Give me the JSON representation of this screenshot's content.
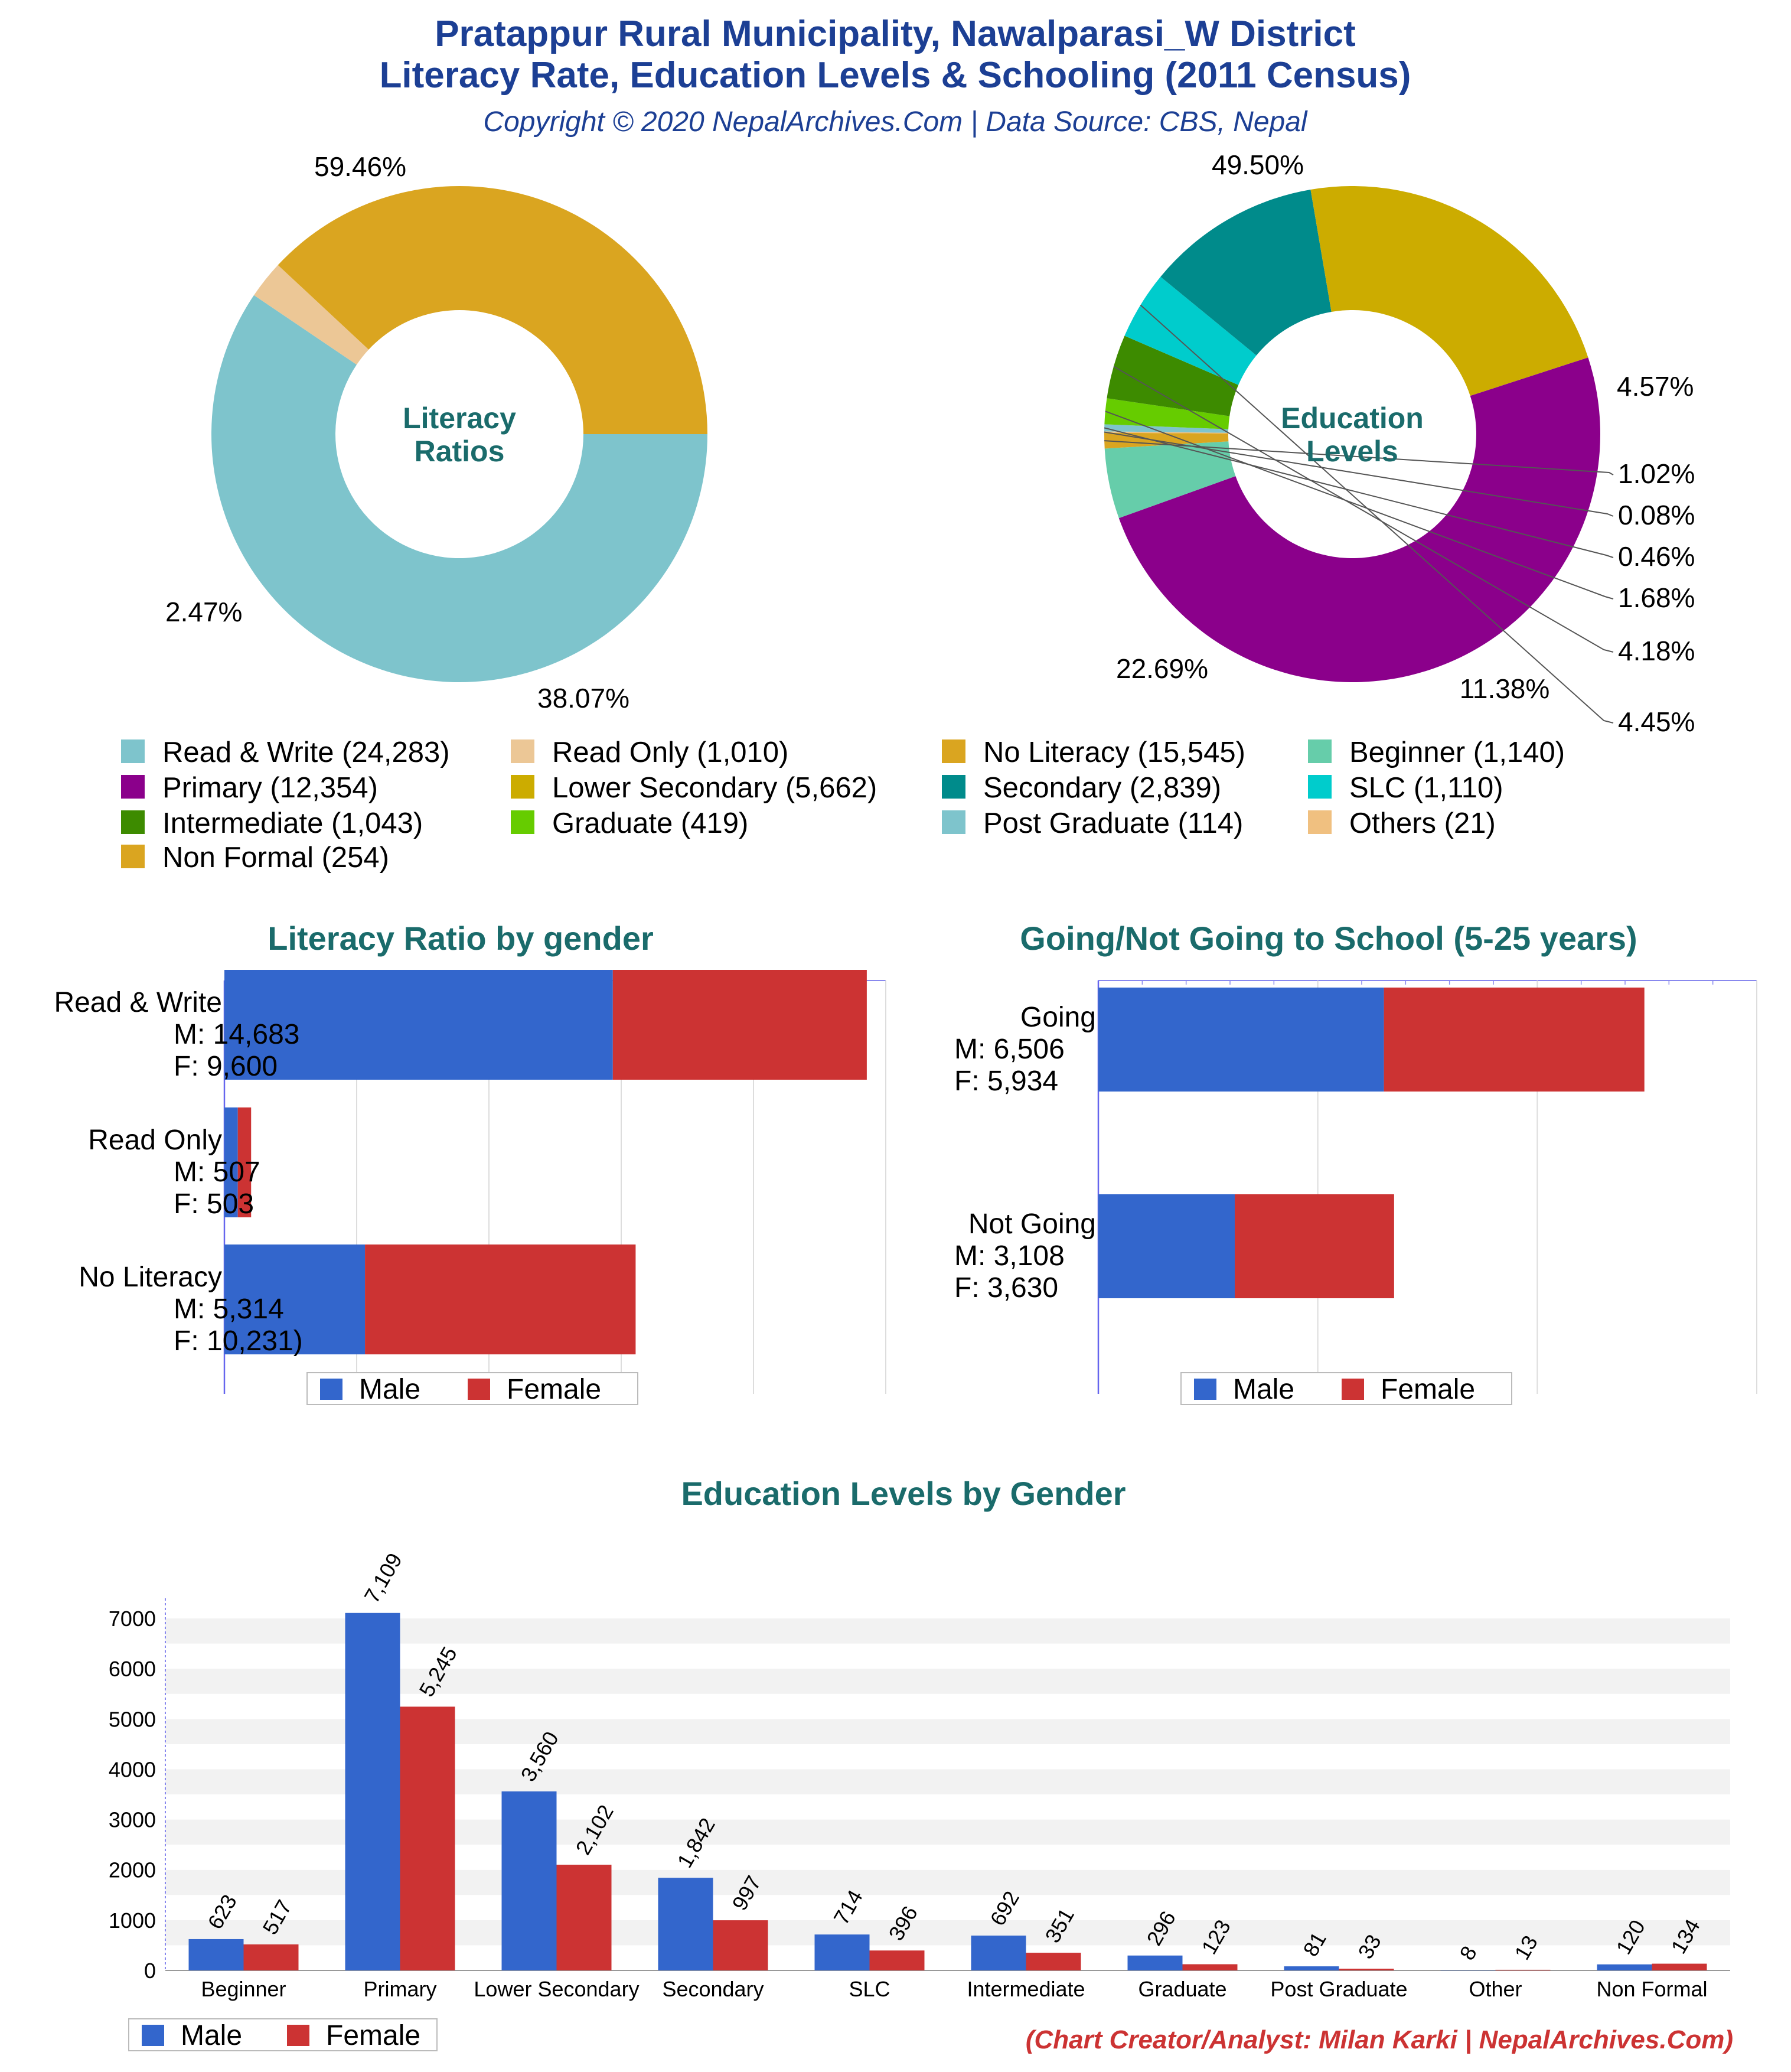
{
  "header": {
    "title_line1": "Pratappur Rural Municipality, Nawalparasi_W District",
    "title_line2": "Literacy Rate, Education Levels & Schooling (2011 Census)",
    "subtitle": "Copyright © 2020 NepalArchives.Com | Data Source: CBS, Nepal"
  },
  "colors": {
    "male": "#3366cc",
    "female": "#cc3333",
    "title": "#1c3f94",
    "panel_title": "#1a6b6b"
  },
  "chart_data": [
    {
      "type": "pie",
      "variant": "donut",
      "center_label": [
        "Literacy",
        "Ratios"
      ],
      "slices": [
        {
          "label": "Read & Write",
          "value": 24283,
          "percent": "59.46%",
          "color": "#7ec4cc"
        },
        {
          "label": "Read Only",
          "value": 1010,
          "percent": "2.47%",
          "color": "#ecc796"
        },
        {
          "label": "No Literacy",
          "value": 15545,
          "percent": "38.07%",
          "color": "#daa520"
        }
      ]
    },
    {
      "type": "pie",
      "variant": "donut",
      "center_label": [
        "Education",
        "Levels"
      ],
      "slices": [
        {
          "label": "Primary",
          "value": 12354,
          "percent": "49.50%",
          "color": "#8b008b"
        },
        {
          "label": "Beginner",
          "value": 1140,
          "percent": "4.57%",
          "color": "#66cdaa"
        },
        {
          "label": "Non Formal",
          "value": 254,
          "percent": "1.02%",
          "color": "#daa520"
        },
        {
          "label": "Others",
          "value": 21,
          "percent": "0.08%",
          "color": "#f0c080"
        },
        {
          "label": "Post Graduate",
          "value": 114,
          "percent": "0.46%",
          "color": "#7ec4cc"
        },
        {
          "label": "Graduate",
          "value": 419,
          "percent": "1.68%",
          "color": "#66cc00"
        },
        {
          "label": "Intermediate",
          "value": 1043,
          "percent": "4.18%",
          "color": "#3d8b00"
        },
        {
          "label": "SLC",
          "value": 1110,
          "percent": "4.45%",
          "color": "#00cccc"
        },
        {
          "label": "Secondary",
          "value": 2839,
          "percent": "11.38%",
          "color": "#008b8b"
        },
        {
          "label": "Lower Secondary",
          "value": 5662,
          "percent": "22.69%",
          "color": "#ccac00"
        }
      ]
    },
    {
      "type": "bar",
      "orientation": "horizontal",
      "stacked": true,
      "title": "Literacy Ratio by gender",
      "categories": [
        {
          "name": "Read & Write",
          "m_text": "M: 14,683",
          "f_text": "F: 9,600"
        },
        {
          "name": "Read Only",
          "m_text": "M: 507",
          "f_text": "F: 503"
        },
        {
          "name": "No Literacy",
          "m_text": "M: 5,314",
          "f_text": "F: 10,231)"
        }
      ],
      "series": [
        {
          "name": "Male",
          "values": [
            14683,
            507,
            5314
          ]
        },
        {
          "name": "Female",
          "values": [
            9600,
            503,
            10231
          ]
        }
      ],
      "xlim": [
        0,
        25000
      ]
    },
    {
      "type": "bar",
      "orientation": "horizontal",
      "stacked": true,
      "title": "Going/Not Going to School (5-25 years)",
      "categories": [
        {
          "name": "Going",
          "m_text": "M: 6,506",
          "f_text": "F: 5,934"
        },
        {
          "name": "Not Going",
          "m_text": "M: 3,108",
          "f_text": "F: 3,630"
        }
      ],
      "series": [
        {
          "name": "Male",
          "values": [
            6506,
            3108
          ]
        },
        {
          "name": "Female",
          "values": [
            5934,
            3630
          ]
        }
      ],
      "xlim": [
        0,
        15000
      ]
    },
    {
      "type": "bar",
      "orientation": "vertical",
      "stacked": false,
      "title": "Education Levels by Gender",
      "categories": [
        "Beginner",
        "Primary",
        "Lower Secondary",
        "Secondary",
        "SLC",
        "Intermediate",
        "Graduate",
        "Post Graduate",
        "Other",
        "Non Formal"
      ],
      "series": [
        {
          "name": "Male",
          "values": [
            623,
            7109,
            3560,
            1842,
            714,
            692,
            296,
            81,
            8,
            120
          ],
          "labels": [
            "623",
            "7,109",
            "3,560",
            "1,842",
            "714",
            "692",
            "296",
            "81",
            "8",
            "120"
          ]
        },
        {
          "name": "Female",
          "values": [
            517,
            5245,
            2102,
            997,
            396,
            351,
            123,
            33,
            13,
            134
          ],
          "labels": [
            "517",
            "5,245",
            "2,102",
            "997",
            "396",
            "351",
            "123",
            "33",
            "13",
            "134"
          ]
        }
      ],
      "yticks": [
        "0",
        "1000",
        "2000",
        "3000",
        "4000",
        "5000",
        "6000",
        "7000"
      ],
      "ylim": [
        0,
        7400
      ]
    }
  ],
  "legend_main": [
    {
      "label": "Read & Write (24,283)",
      "color": "#7ec4cc"
    },
    {
      "label": "Read Only (1,010)",
      "color": "#ecc796"
    },
    {
      "label": "No Literacy (15,545)",
      "color": "#daa520"
    },
    {
      "label": "Beginner (1,140)",
      "color": "#66cdaa"
    },
    {
      "label": "Primary (12,354)",
      "color": "#8b008b"
    },
    {
      "label": "Lower Secondary (5,662)",
      "color": "#ccac00"
    },
    {
      "label": "Secondary (2,839)",
      "color": "#008b8b"
    },
    {
      "label": "SLC (1,110)",
      "color": "#00cccc"
    },
    {
      "label": "Intermediate (1,043)",
      "color": "#3d8b00"
    },
    {
      "label": "Graduate (419)",
      "color": "#66cc00"
    },
    {
      "label": "Post Graduate (114)",
      "color": "#7ec4cc"
    },
    {
      "label": "Others (21)",
      "color": "#f0c080"
    },
    {
      "label": "Non Formal (254)",
      "color": "#daa520"
    }
  ],
  "legend_gender": {
    "male": "Male",
    "female": "Female"
  },
  "credit": "(Chart Creator/Analyst: Milan Karki | NepalArchives.Com)"
}
